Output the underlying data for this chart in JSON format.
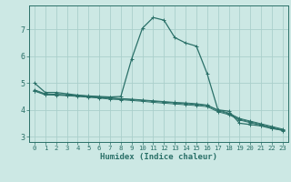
{
  "xlabel": "Humidex (Indice chaleur)",
  "bg_color": "#cce8e4",
  "grid_color": "#aacfcb",
  "line_color": "#2a7068",
  "xlim": [
    -0.5,
    23.5
  ],
  "ylim": [
    2.8,
    7.9
  ],
  "xticks": [
    0,
    1,
    2,
    3,
    4,
    5,
    6,
    7,
    8,
    9,
    10,
    11,
    12,
    13,
    14,
    15,
    16,
    17,
    18,
    19,
    20,
    21,
    22,
    23
  ],
  "yticks": [
    3,
    4,
    5,
    6,
    7
  ],
  "line1_x": [
    0,
    1,
    2,
    3,
    4,
    5,
    6,
    7,
    8,
    9,
    10,
    11,
    12,
    13,
    14,
    15,
    16,
    17,
    18,
    19,
    20,
    21,
    22,
    23
  ],
  "line1_y": [
    5.0,
    4.65,
    4.65,
    4.6,
    4.55,
    4.52,
    4.5,
    4.48,
    4.5,
    5.9,
    7.05,
    7.45,
    7.35,
    6.7,
    6.5,
    6.38,
    5.35,
    4.0,
    3.95,
    3.5,
    3.45,
    3.4,
    3.3,
    3.25
  ],
  "line2_x": [
    0,
    1,
    2,
    3,
    4,
    5,
    6,
    7,
    8,
    9,
    10,
    11,
    12,
    13,
    14,
    15,
    16,
    17,
    18,
    19,
    20,
    21,
    22,
    23
  ],
  "line2_y": [
    4.75,
    4.6,
    4.58,
    4.56,
    4.54,
    4.51,
    4.48,
    4.45,
    4.42,
    4.4,
    4.37,
    4.34,
    4.31,
    4.28,
    4.26,
    4.23,
    4.18,
    4.0,
    3.88,
    3.68,
    3.58,
    3.48,
    3.38,
    3.28
  ],
  "line3_x": [
    0,
    1,
    2,
    3,
    4,
    5,
    6,
    7,
    8,
    9,
    10,
    11,
    12,
    13,
    14,
    15,
    16,
    17,
    18,
    19,
    20,
    21,
    22,
    23
  ],
  "line3_y": [
    4.72,
    4.58,
    4.57,
    4.55,
    4.52,
    4.49,
    4.46,
    4.43,
    4.41,
    4.38,
    4.35,
    4.32,
    4.29,
    4.26,
    4.23,
    4.2,
    4.16,
    3.97,
    3.85,
    3.65,
    3.55,
    3.45,
    3.35,
    3.25
  ],
  "line4_x": [
    0,
    1,
    2,
    3,
    4,
    5,
    6,
    7,
    8,
    9,
    10,
    11,
    12,
    13,
    14,
    15,
    16,
    17,
    18,
    19,
    20,
    21,
    22,
    23
  ],
  "line4_y": [
    4.7,
    4.56,
    4.55,
    4.53,
    4.5,
    4.47,
    4.44,
    4.4,
    4.38,
    4.35,
    4.32,
    4.28,
    4.25,
    4.22,
    4.19,
    4.16,
    4.12,
    3.93,
    3.82,
    3.62,
    3.52,
    3.42,
    3.32,
    3.22
  ]
}
